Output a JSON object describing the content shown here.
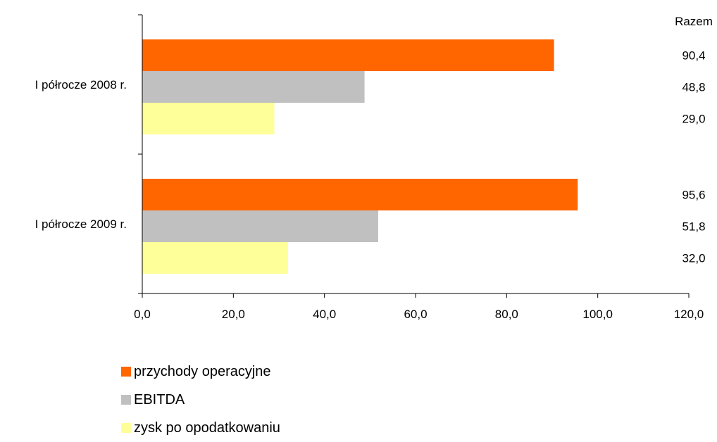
{
  "chart_data": {
    "type": "bar",
    "orientation": "horizontal",
    "categories": [
      "I półrocze 2008 r.",
      "I półrocze 2009 r."
    ],
    "series": [
      {
        "name": "przychody operacyjne",
        "color": "#FF6600",
        "values": [
          90.4,
          95.6
        ],
        "value_labels": [
          "90,4",
          "95,6"
        ]
      },
      {
        "name": "EBITDA",
        "color": "#C0C0C0",
        "values": [
          48.8,
          51.8
        ],
        "value_labels": [
          "48,8",
          "51,8"
        ]
      },
      {
        "name": "zysk po opodatkowaniu",
        "color": "#FFFF99",
        "values": [
          29.0,
          32.0
        ],
        "value_labels": [
          "29,0",
          "32,0"
        ]
      }
    ],
    "xlim": [
      0,
      120
    ],
    "x_ticks": [
      "0,0",
      "20,0",
      "40,0",
      "60,0",
      "80,0",
      "100,0",
      "120,0"
    ],
    "value_column_header": "Razem",
    "grid": false,
    "legend_position": "bottom"
  }
}
